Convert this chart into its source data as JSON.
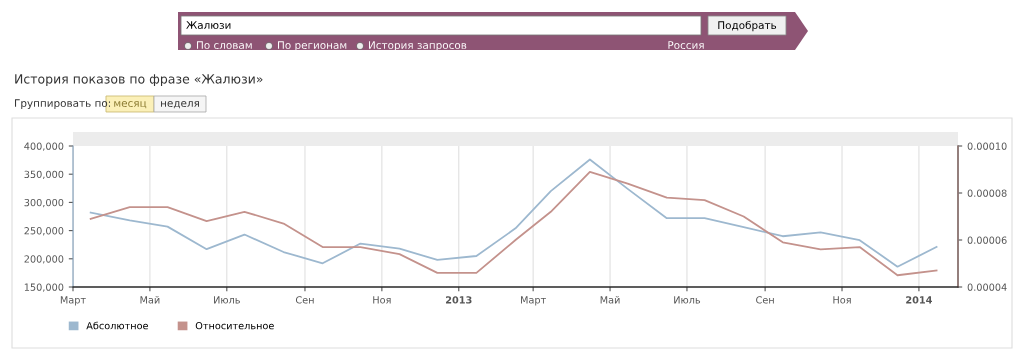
{
  "chart_data": {
    "type": "line",
    "title": "История показов по фразе «Жалюзи»",
    "x": [
      "2012-03-15",
      "2012-04-15",
      "2012-05-15",
      "2012-06-15",
      "2012-07-15",
      "2012-08-15",
      "2012-09-15",
      "2012-10-15",
      "2012-11-15",
      "2012-12-15",
      "2013-01-15",
      "2013-02-15",
      "2013-03-15",
      "2013-04-15",
      "2013-05-15",
      "2013-06-15",
      "2013-07-15",
      "2013-08-15",
      "2013-09-15",
      "2013-10-15",
      "2013-11-15",
      "2013-12-15",
      "2014-01-15"
    ],
    "series": [
      {
        "name": "Абсолютное",
        "color": "#9db8cf",
        "values": [
          282000,
          268000,
          257000,
          217000,
          243000,
          212000,
          192000,
          227000,
          218000,
          198000,
          205000,
          254000,
          320000,
          376000,
          324000,
          272000,
          272000,
          256000,
          240000,
          247000,
          233000,
          186000,
          221000
        ]
      },
      {
        "name": "Относительное",
        "color": "#c4928c",
        "axis": "y2",
        "values": [
          6.9e-05,
          7.4e-05,
          7.4e-05,
          6.8e-05,
          7.2e-05,
          6.7e-05,
          5.7e-05,
          5.7e-05,
          5.4e-05,
          4.6e-05,
          4.6e-05,
          6e-05,
          7.2e-05,
          8.9e-05,
          8.4e-05,
          7.8e-05,
          7.7e-05,
          7e-05,
          5.9e-05,
          5.6e-05,
          5.7e-05,
          4.5e-05,
          4.7e-05
        ]
      }
    ],
    "xlim": [
      "2012-03-01",
      "2014-02-01"
    ],
    "xticks": [
      {
        "value": "2012-03-01",
        "label": "Март"
      },
      {
        "value": "2012-05-01",
        "label": "Май"
      },
      {
        "value": "2012-07-01",
        "label": "Июль"
      },
      {
        "value": "2012-09-01",
        "label": "Сен"
      },
      {
        "value": "2012-11-01",
        "label": "Ноя"
      },
      {
        "value": "2013-01-01",
        "label": "2013"
      },
      {
        "value": "2013-03-01",
        "label": "Март"
      },
      {
        "value": "2013-05-01",
        "label": "Май"
      },
      {
        "value": "2013-07-01",
        "label": "Июль"
      },
      {
        "value": "2013-09-01",
        "label": "Сен"
      },
      {
        "value": "2013-11-01",
        "label": "Ноя"
      },
      {
        "value": "2014-01-01",
        "label": "2014"
      }
    ],
    "ylim": [
      150000,
      400000
    ],
    "yticks": [
      {
        "value": 150000,
        "label": "150,000"
      },
      {
        "value": 200000,
        "label": "200,000"
      },
      {
        "value": 250000,
        "label": "250,000"
      },
      {
        "value": 300000,
        "label": "300,000"
      },
      {
        "value": 350000,
        "label": "350,000"
      },
      {
        "value": 400000,
        "label": "400,000"
      }
    ],
    "y2lim": [
      4e-05,
      0.0001
    ],
    "y2ticks": [
      {
        "value": 4e-05,
        "label": "0.00004"
      },
      {
        "value": 6e-05,
        "label": "0.00006"
      },
      {
        "value": 8e-05,
        "label": "0.00008"
      },
      {
        "value": 0.0001,
        "label": "0.00010"
      }
    ],
    "grid": "x",
    "legend": "bottom left",
    "marker": "none",
    "line_style": "solid",
    "annotations": [
      "Жалюзи",
      "Подобрать",
      "По словам",
      "По регионам",
      "История запросов",
      "Россия",
      "Группировать по:",
      "месяц",
      "неделя"
    ]
  }
}
